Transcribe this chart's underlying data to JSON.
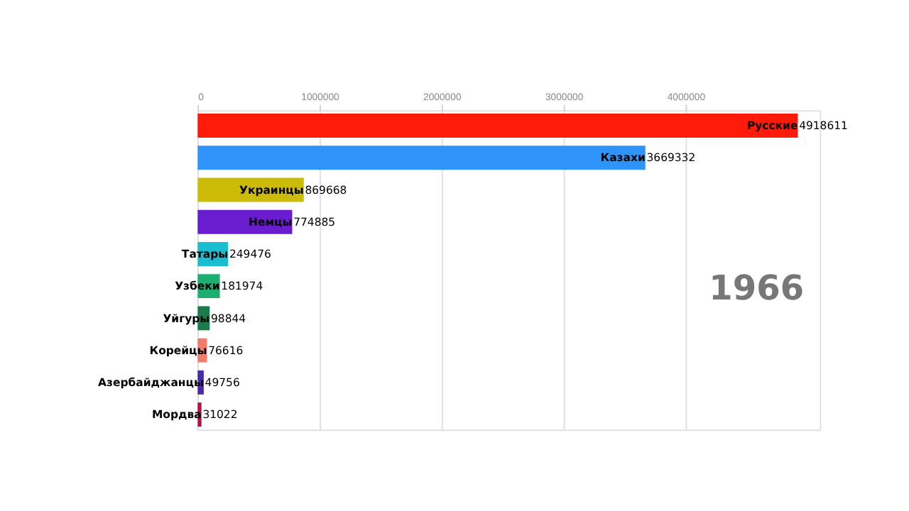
{
  "chart_data": {
    "type": "bar",
    "orientation": "horizontal",
    "categories": [
      "Русские",
      "Казахи",
      "Украинцы",
      "Немцы",
      "Татары",
      "Узбеки",
      "Уйгуры",
      "Корейцы",
      "Азербайджанцы",
      "Мордва"
    ],
    "values": [
      4918611,
      3669332,
      869668,
      774885,
      249476,
      181974,
      98844,
      76616,
      49756,
      31022
    ],
    "colors": [
      "#ff1a0a",
      "#2e94fa",
      "#cdbb0a",
      "#6a1ccf",
      "#1bbdd0",
      "#1fae72",
      "#1b7b4c",
      "#f07c6c",
      "#4a2aa6",
      "#b3104a"
    ],
    "xlim": [
      0,
      5100000
    ],
    "xticks": [
      0,
      1000000,
      2000000,
      3000000,
      4000000
    ],
    "grid": "x",
    "data_labels": true,
    "annotations": [
      "1966"
    ]
  }
}
